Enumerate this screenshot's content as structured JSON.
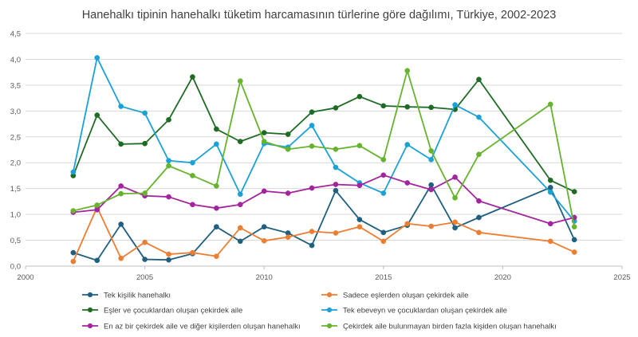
{
  "chart_data": {
    "type": "line",
    "title": "Hanehalkı tipinin hanehalkı tüketim harcamasının türlerine göre dağılımı, Türkiye, 2002-2023",
    "xlabel": "",
    "ylabel": "",
    "xlim": [
      2000,
      2025
    ],
    "ylim": [
      0,
      4.5
    ],
    "x_ticks": [
      "2000",
      "2005",
      "2010",
      "2015",
      "2020",
      "2025"
    ],
    "y_ticks": [
      "0,0",
      "0,5",
      "1,0",
      "1,5",
      "2,0",
      "2,5",
      "3,0",
      "3,5",
      "4,0",
      "4,5"
    ],
    "grid": "horizontal",
    "legend_position": "bottom",
    "series": [
      {
        "name": "Tek kişilik hanehalkı",
        "color": "#1f5f7f",
        "points": [
          [
            2002,
            0.26
          ],
          [
            2003,
            0.11
          ],
          [
            2004,
            0.81
          ],
          [
            2005,
            0.13
          ],
          [
            2006,
            0.12
          ],
          [
            2007,
            0.24
          ],
          [
            2008,
            0.76
          ],
          [
            2009,
            0.48
          ],
          [
            2010,
            0.76
          ],
          [
            2011,
            0.64
          ],
          [
            2012,
            0.4
          ],
          [
            2013,
            1.46
          ],
          [
            2014,
            0.9
          ],
          [
            2015,
            0.65
          ],
          [
            2016,
            0.79
          ],
          [
            2017,
            1.57
          ],
          [
            2018,
            0.74
          ],
          [
            2019,
            0.94
          ],
          [
            2022,
            1.52
          ],
          [
            2023,
            0.51
          ]
        ]
      },
      {
        "name": "Sadece eşlerden oluşan çekirdek aile",
        "color": "#ed7d31",
        "points": [
          [
            2002,
            0.09
          ],
          [
            2003,
            1.14
          ],
          [
            2004,
            0.15
          ],
          [
            2005,
            0.46
          ],
          [
            2006,
            0.23
          ],
          [
            2007,
            0.26
          ],
          [
            2008,
            0.19
          ],
          [
            2009,
            0.74
          ],
          [
            2010,
            0.49
          ],
          [
            2011,
            0.56
          ],
          [
            2012,
            0.67
          ],
          [
            2013,
            0.64
          ],
          [
            2014,
            0.76
          ],
          [
            2015,
            0.48
          ],
          [
            2016,
            0.82
          ],
          [
            2017,
            0.77
          ],
          [
            2018,
            0.85
          ],
          [
            2019,
            0.65
          ],
          [
            2022,
            0.48
          ],
          [
            2023,
            0.27
          ]
        ]
      },
      {
        "name": "Eşler ve çocuklardan oluşan çekirdek aile",
        "color": "#1e6b24",
        "points": [
          [
            2002,
            1.75
          ],
          [
            2003,
            2.92
          ],
          [
            2004,
            2.36
          ],
          [
            2005,
            2.37
          ],
          [
            2006,
            2.83
          ],
          [
            2007,
            3.66
          ],
          [
            2008,
            2.65
          ],
          [
            2009,
            2.41
          ],
          [
            2010,
            2.58
          ],
          [
            2011,
            2.55
          ],
          [
            2012,
            2.98
          ],
          [
            2013,
            3.06
          ],
          [
            2014,
            3.28
          ],
          [
            2015,
            3.1
          ],
          [
            2016,
            3.08
          ],
          [
            2017,
            3.07
          ],
          [
            2018,
            3.03
          ],
          [
            2019,
            3.61
          ],
          [
            2022,
            1.66
          ],
          [
            2023,
            1.44
          ]
        ]
      },
      {
        "name": "Tek ebeveyn ve çocuklardan oluşan çekirdek aile",
        "color": "#1ba1d6",
        "points": [
          [
            2002,
            1.82
          ],
          [
            2003,
            4.03
          ],
          [
            2004,
            3.09
          ],
          [
            2005,
            2.96
          ],
          [
            2006,
            2.04
          ],
          [
            2007,
            2.0
          ],
          [
            2008,
            2.36
          ],
          [
            2009,
            1.39
          ],
          [
            2010,
            2.37
          ],
          [
            2011,
            2.3
          ],
          [
            2012,
            2.72
          ],
          [
            2013,
            1.91
          ],
          [
            2014,
            1.61
          ],
          [
            2015,
            1.41
          ],
          [
            2016,
            2.35
          ],
          [
            2017,
            2.06
          ],
          [
            2018,
            3.12
          ],
          [
            2019,
            2.88
          ],
          [
            2022,
            1.43
          ],
          [
            2023,
            0.87
          ]
        ]
      },
      {
        "name": "En az bir çekirdek aile ve diğer kişilerden oluşan hanehalkı",
        "color": "#a3249e",
        "points": [
          [
            2002,
            1.04
          ],
          [
            2003,
            1.09
          ],
          [
            2004,
            1.55
          ],
          [
            2005,
            1.36
          ],
          [
            2006,
            1.34
          ],
          [
            2007,
            1.19
          ],
          [
            2008,
            1.12
          ],
          [
            2009,
            1.19
          ],
          [
            2010,
            1.45
          ],
          [
            2011,
            1.41
          ],
          [
            2012,
            1.51
          ],
          [
            2013,
            1.58
          ],
          [
            2014,
            1.56
          ],
          [
            2015,
            1.76
          ],
          [
            2016,
            1.61
          ],
          [
            2017,
            1.48
          ],
          [
            2018,
            1.72
          ],
          [
            2019,
            1.26
          ],
          [
            2022,
            0.82
          ],
          [
            2023,
            0.94
          ]
        ]
      },
      {
        "name": "Çekirdek aile bulunmayan birden fazla kişiden oluşan hanehalkı",
        "color": "#66b32e",
        "points": [
          [
            2002,
            1.07
          ],
          [
            2003,
            1.18
          ],
          [
            2004,
            1.4
          ],
          [
            2005,
            1.41
          ],
          [
            2006,
            1.94
          ],
          [
            2007,
            1.75
          ],
          [
            2008,
            1.55
          ],
          [
            2009,
            3.58
          ],
          [
            2010,
            2.41
          ],
          [
            2011,
            2.26
          ],
          [
            2012,
            2.32
          ],
          [
            2013,
            2.26
          ],
          [
            2014,
            2.33
          ],
          [
            2015,
            2.06
          ],
          [
            2016,
            3.78
          ],
          [
            2017,
            2.23
          ],
          [
            2018,
            1.32
          ],
          [
            2019,
            2.16
          ],
          [
            2022,
            3.13
          ],
          [
            2023,
            0.76
          ]
        ]
      }
    ]
  }
}
